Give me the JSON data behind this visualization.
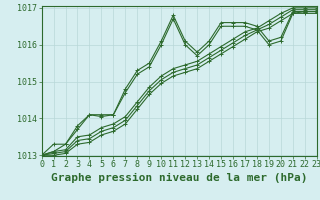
{
  "background_color": "#d6eef0",
  "grid_color": "#b8d8d8",
  "line_color": "#2d6a2d",
  "xlabel": "Graphe pression niveau de la mer (hPa)",
  "xlim": [
    0,
    23
  ],
  "ylim": [
    1013,
    1017
  ],
  "yticks": [
    1013,
    1014,
    1015,
    1016,
    1017
  ],
  "xticks": [
    0,
    1,
    2,
    3,
    4,
    5,
    6,
    7,
    8,
    9,
    10,
    11,
    12,
    13,
    14,
    15,
    16,
    17,
    18,
    19,
    20,
    21,
    22,
    23
  ],
  "series": [
    [
      1013.0,
      1013.3,
      1013.3,
      1013.8,
      1014.1,
      1014.1,
      1014.1,
      1014.8,
      1015.3,
      1015.5,
      1016.1,
      1016.8,
      1016.1,
      1015.8,
      1016.1,
      1016.6,
      1016.6,
      1016.6,
      1016.5,
      1016.1,
      1016.2,
      1016.9,
      1016.9,
      1016.9
    ],
    [
      1013.0,
      1013.1,
      1013.3,
      1013.7,
      1014.1,
      1014.05,
      1014.1,
      1014.7,
      1015.2,
      1015.4,
      1016.0,
      1016.7,
      1016.0,
      1015.7,
      1016.0,
      1016.5,
      1016.5,
      1016.5,
      1016.4,
      1016.0,
      1016.1,
      1016.85,
      1016.85,
      1016.85
    ],
    [
      1013.0,
      1013.1,
      1013.15,
      1013.5,
      1013.55,
      1013.75,
      1013.85,
      1014.05,
      1014.45,
      1014.85,
      1015.15,
      1015.35,
      1015.45,
      1015.55,
      1015.75,
      1015.95,
      1016.15,
      1016.35,
      1016.45,
      1016.65,
      1016.85,
      1017.0,
      1017.0,
      1017.0
    ],
    [
      1013.0,
      1013.05,
      1013.1,
      1013.4,
      1013.45,
      1013.65,
      1013.75,
      1013.95,
      1014.35,
      1014.75,
      1015.05,
      1015.25,
      1015.35,
      1015.45,
      1015.65,
      1015.85,
      1016.05,
      1016.25,
      1016.4,
      1016.55,
      1016.75,
      1016.95,
      1016.95,
      1016.95
    ],
    [
      1013.0,
      1013.0,
      1013.05,
      1013.3,
      1013.35,
      1013.55,
      1013.65,
      1013.85,
      1014.25,
      1014.65,
      1014.95,
      1015.15,
      1015.25,
      1015.35,
      1015.55,
      1015.75,
      1015.95,
      1016.15,
      1016.35,
      1016.45,
      1016.65,
      1016.85,
      1016.9,
      1016.9
    ]
  ],
  "marker": "+",
  "markersize": 3,
  "linewidth": 0.8,
  "xlabel_fontsize": 8,
  "tick_fontsize": 6
}
